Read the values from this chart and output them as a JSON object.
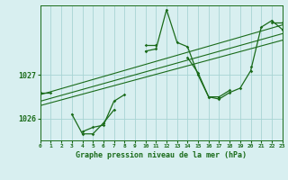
{
  "title": "Graphe pression niveau de la mer (hPa)",
  "bg_color": "#d8eff0",
  "grid_color": "#a8d4d4",
  "line_color": "#1a6b1a",
  "x_min": 0,
  "x_max": 23,
  "y_min": 1025.5,
  "y_max": 1028.6,
  "yticks": [
    1026,
    1027
  ],
  "series1": [
    1026.6,
    1026.6,
    null,
    null,
    1025.7,
    1025.8,
    1025.85,
    1026.4,
    1026.55,
    null,
    1027.55,
    1027.6,
    1028.5,
    1027.75,
    1027.65,
    1027.0,
    1026.5,
    1026.45,
    1026.6,
    1026.7,
    1027.1,
    1028.1,
    1028.25,
    1028.05
  ],
  "series2": [
    1026.6,
    null,
    null,
    1026.1,
    1025.65,
    1025.65,
    1025.9,
    1026.2,
    null,
    null,
    1027.7,
    1027.7,
    null,
    null,
    1027.4,
    1027.05,
    1026.5,
    1026.5,
    1026.65,
    null,
    1027.2,
    null,
    1028.2,
    1028.2
  ],
  "trend_lines": [
    [
      [
        0,
        1026.55
      ],
      [
        23,
        1028.15
      ]
    ],
    [
      [
        0,
        1026.4
      ],
      [
        23,
        1027.95
      ]
    ],
    [
      [
        0,
        1026.3
      ],
      [
        23,
        1027.8
      ]
    ]
  ]
}
